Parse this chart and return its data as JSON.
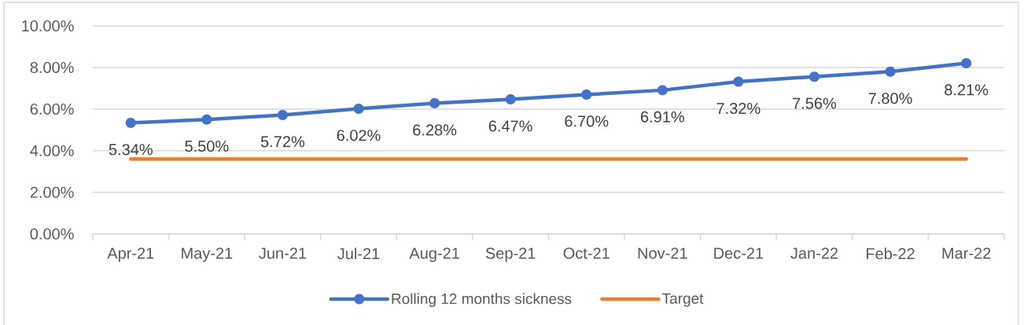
{
  "chart_data": {
    "type": "line",
    "categories": [
      "Apr-21",
      "May-21",
      "Jun-21",
      "Jul-21",
      "Aug-21",
      "Sep-21",
      "Oct-21",
      "Nov-21",
      "Dec-21",
      "Jan-22",
      "Feb-22",
      "Mar-22"
    ],
    "series": [
      {
        "name": "Rolling 12 months sickness",
        "color": "#4472c4",
        "marker": "circle",
        "values": [
          5.34,
          5.5,
          5.72,
          6.02,
          6.28,
          6.47,
          6.7,
          6.91,
          7.32,
          7.56,
          7.8,
          8.21
        ],
        "value_labels": [
          "5.34%",
          "5.50%",
          "5.72%",
          "6.02%",
          "6.28%",
          "6.47%",
          "6.70%",
          "6.91%",
          "7.32%",
          "7.56%",
          "7.80%",
          "8.21%"
        ]
      },
      {
        "name": "Target",
        "color": "#ed7d31",
        "marker": "none",
        "values": [
          3.6,
          3.6,
          3.6,
          3.6,
          3.6,
          3.6,
          3.6,
          3.6,
          3.6,
          3.6,
          3.6,
          3.6
        ]
      }
    ],
    "ylim": [
      0,
      10
    ],
    "yticks": [
      {
        "value": 0,
        "label": "0.00%"
      },
      {
        "value": 2,
        "label": "2.00%"
      },
      {
        "value": 4,
        "label": "4.00%"
      },
      {
        "value": 6,
        "label": "6.00%"
      },
      {
        "value": 8,
        "label": "8.00%"
      },
      {
        "value": 10,
        "label": "10.00%"
      }
    ],
    "grid": "y",
    "legend": "bottom"
  }
}
